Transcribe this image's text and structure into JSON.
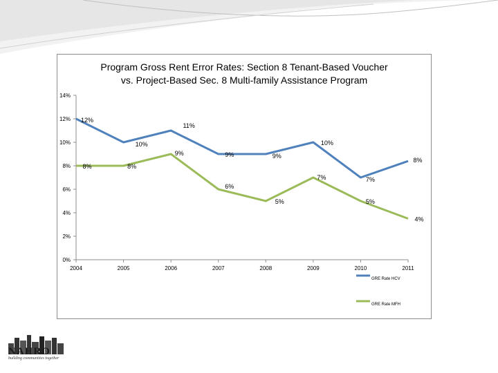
{
  "chart_data": {
    "type": "line",
    "title_lines": [
      "Program Gross Rent Error Rates:  Section 8 Tenant-Based Voucher",
      "vs. Project-Based Sec. 8 Multi-family Assistance Program"
    ],
    "x": [
      "2004",
      "2005",
      "2006",
      "2007",
      "2008",
      "2009",
      "2010",
      "2011"
    ],
    "ylim": [
      0,
      14
    ],
    "yticks": [
      "0%",
      "2%",
      "4%",
      "6%",
      "8%",
      "10%",
      "12%",
      "14%"
    ],
    "series": [
      {
        "name": "GRE Rate HCV",
        "color": "#4f81bd",
        "values": [
          12,
          10,
          11,
          9,
          9,
          10,
          7,
          8.4
        ],
        "labels": [
          "12%",
          "10%",
          "11%",
          "9%",
          "9%",
          "10%",
          "7%",
          "8%"
        ]
      },
      {
        "name": "GRE Rate MFH",
        "color": "#9bbb59",
        "values": [
          8,
          8,
          9,
          6,
          5,
          7,
          5,
          3.5
        ],
        "labels": [
          "8%",
          "8%",
          "9%",
          "6%",
          "5%",
          "7%",
          "5%",
          "4%"
        ]
      }
    ]
  },
  "logo": {
    "text": "NAHRO",
    "tagline": "building communities together"
  }
}
